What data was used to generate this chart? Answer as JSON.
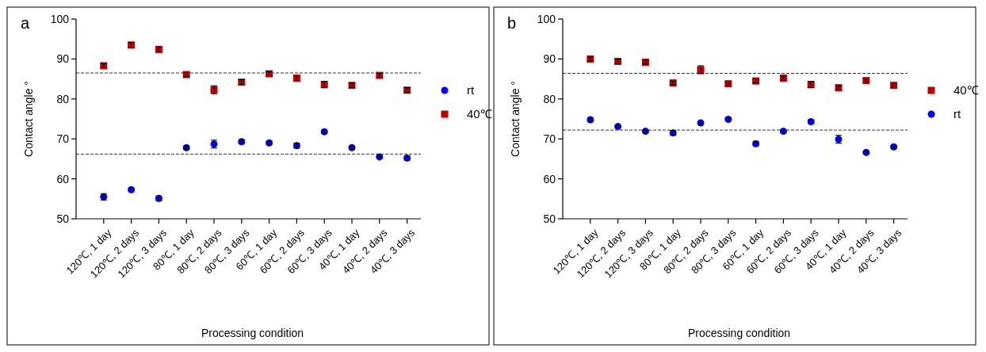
{
  "chart_data": [
    {
      "type": "scatter",
      "title": "a",
      "xlabel": "Processing condition",
      "ylabel": "Contact angle °",
      "categories": [
        "120℃, 1 day",
        "120℃, 2 days",
        "120℃, 3 days",
        "80℃, 1 day",
        "80℃, 2 days",
        "80℃, 3 days",
        "60℃, 1 day",
        "60℃, 2 days",
        "60℃, 3 days",
        "40℃, 1 day",
        "40℃, 2 days",
        "40℃, 3 days"
      ],
      "ylim": [
        50,
        100
      ],
      "yticks": [
        50,
        60,
        70,
        80,
        90,
        100
      ],
      "legend": "right",
      "grid": false,
      "series": [
        {
          "name": "rt",
          "color": "#0000ff",
          "marker": "circle",
          "values": [
            55.5,
            57.3,
            55.1,
            67.8,
            68.7,
            69.3,
            69.0,
            68.3,
            71.8,
            67.8,
            65.5,
            65.2
          ],
          "errors": [
            0.8,
            0.4,
            0.6,
            0.4,
            1.0,
            0.5,
            0.4,
            0.6,
            0.4,
            0.4,
            0.3,
            0.5
          ]
        },
        {
          "name": "40℃",
          "color": "#c00000",
          "marker": "square",
          "values": [
            88.3,
            93.5,
            92.4,
            86.1,
            82.3,
            84.2,
            86.3,
            85.2,
            83.6,
            83.4,
            85.9,
            82.2
          ],
          "errors": [
            0.5,
            0.6,
            0.6,
            0.5,
            1.0,
            0.6,
            0.5,
            0.6,
            0.8,
            0.5,
            0.5,
            0.6
          ]
        }
      ],
      "ref_lines": [
        {
          "axis": "y",
          "value": 86.5,
          "line_style": "dashed",
          "color": "#333333"
        },
        {
          "axis": "y",
          "value": 66.2,
          "line_style": "dashed",
          "color": "#333333"
        }
      ]
    },
    {
      "type": "scatter",
      "title": "b",
      "xlabel": "Processing condition",
      "ylabel": "Contact angle °",
      "categories": [
        "120℃, 1 day",
        "120℃, 2 days",
        "120℃, 3 days",
        "80℃, 1 day",
        "80℃, 2 days",
        "80℃, 3 days",
        "60℃, 1 day",
        "60℃, 2 days",
        "60℃, 3 days",
        "40℃, 1 day",
        "40℃, 2 days",
        "40℃, 3 days"
      ],
      "ylim": [
        50,
        100
      ],
      "yticks": [
        50,
        60,
        70,
        80,
        90,
        100
      ],
      "legend": "right",
      "grid": false,
      "series": [
        {
          "name": "40℃",
          "color": "#c00000",
          "marker": "square",
          "values": [
            90.0,
            89.4,
            89.2,
            84.0,
            87.3,
            83.8,
            84.5,
            85.2,
            83.6,
            82.8,
            84.6,
            83.4
          ],
          "errors": [
            0.5,
            0.5,
            0.5,
            0.4,
            1.0,
            0.4,
            0.5,
            0.5,
            0.8,
            0.5,
            0.4,
            0.4
          ]
        },
        {
          "name": "rt",
          "color": "#0000ff",
          "marker": "circle",
          "values": [
            74.8,
            73.1,
            71.9,
            71.5,
            74.0,
            74.9,
            68.8,
            71.9,
            74.3,
            69.9,
            66.6,
            68.0
          ],
          "errors": [
            0.4,
            0.3,
            0.3,
            0.6,
            0.3,
            0.3,
            0.5,
            0.4,
            0.4,
            1.0,
            0.3,
            0.3
          ]
        }
      ],
      "ref_lines": [
        {
          "axis": "y",
          "value": 86.4,
          "line_style": "dashed",
          "color": "#333333"
        },
        {
          "axis": "y",
          "value": 72.2,
          "line_style": "dashed",
          "color": "#333333"
        }
      ]
    }
  ]
}
